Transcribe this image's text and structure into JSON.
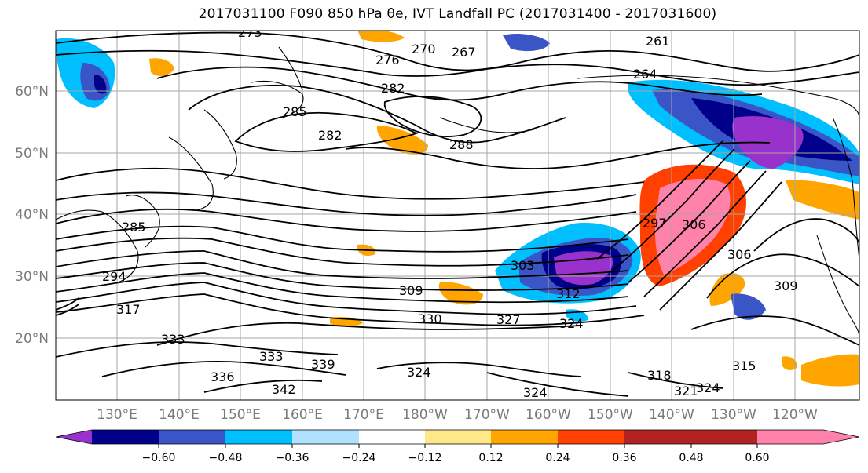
{
  "title": "2017031100 F090 850 hPa θe, IVT Landfall PC (2017031400 - 2017031600)",
  "map": {
    "lat_labels": [
      "60°N",
      "50°N",
      "40°N",
      "30°N",
      "20°N"
    ],
    "lon_labels": [
      "130°E",
      "140°E",
      "150°E",
      "160°E",
      "170°E",
      "180°W",
      "170°W",
      "160°W",
      "150°W",
      "140°W",
      "130°W",
      "120°W"
    ],
    "contour_labels": [
      "273",
      "276",
      "270",
      "267",
      "264",
      "261",
      "282",
      "285",
      "288",
      "282",
      "285",
      "294",
      "297",
      "306",
      "306",
      "303",
      "309",
      "312",
      "317",
      "327",
      "324",
      "330",
      "333",
      "333",
      "336",
      "339",
      "342",
      "324",
      "324",
      "315",
      "318",
      "321",
      "324",
      "309"
    ]
  },
  "colorbar": {
    "tick_labels": [
      "−0.60",
      "−0.48",
      "−0.36",
      "−0.24",
      "−0.12",
      "0.12",
      "0.24",
      "0.36",
      "0.48",
      "0.60"
    ],
    "colors": [
      "#9932cc",
      "#00008b",
      "#3a55c6",
      "#00bfff",
      "#b0e2ff",
      "#ffffff",
      "#ffe88a",
      "#ffa500",
      "#ff4000",
      "#b22222",
      "#ff82ab"
    ]
  }
}
